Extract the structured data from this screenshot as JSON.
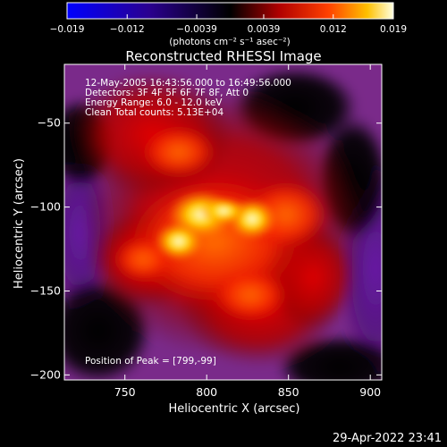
{
  "chart_data": {
    "type": "heatmap",
    "title": "Reconstructed RHESSI Image",
    "xlabel": "Heliocentric X (arcsec)",
    "ylabel": "Heliocentric Y (arcsec)",
    "xlim": [
      713,
      907
    ],
    "ylim": [
      -203,
      -15
    ],
    "x_ticks": [
      750,
      800,
      850,
      900
    ],
    "y_ticks": [
      -50,
      -100,
      -150,
      -200
    ],
    "colorbar": {
      "label": "(photons cm⁻² s⁻¹ asec⁻²)",
      "min": -0.019,
      "max": 0.019,
      "tick_labels": [
        "-0.019",
        "-0.012",
        "-0.0039",
        "0.0039",
        "0.012",
        "0.019"
      ],
      "tick_values": [
        -0.019,
        -0.012,
        -0.0039,
        0.0039,
        0.012,
        0.019
      ]
    },
    "annotations": [
      "12-May-2005 16:43:56.000 to 16:49:56.000",
      "Detectors: 3F 4F 5F 6F 7F 8F, Att 0",
      "Energy Range: 6.0 - 12.0 keV",
      "Clean     Total counts: 5.13E+04"
    ],
    "peak_label": "Position of Peak = [799,-99]",
    "peak": [
      799,
      -99
    ],
    "timestamp": "29-Apr-2022 23:41"
  }
}
